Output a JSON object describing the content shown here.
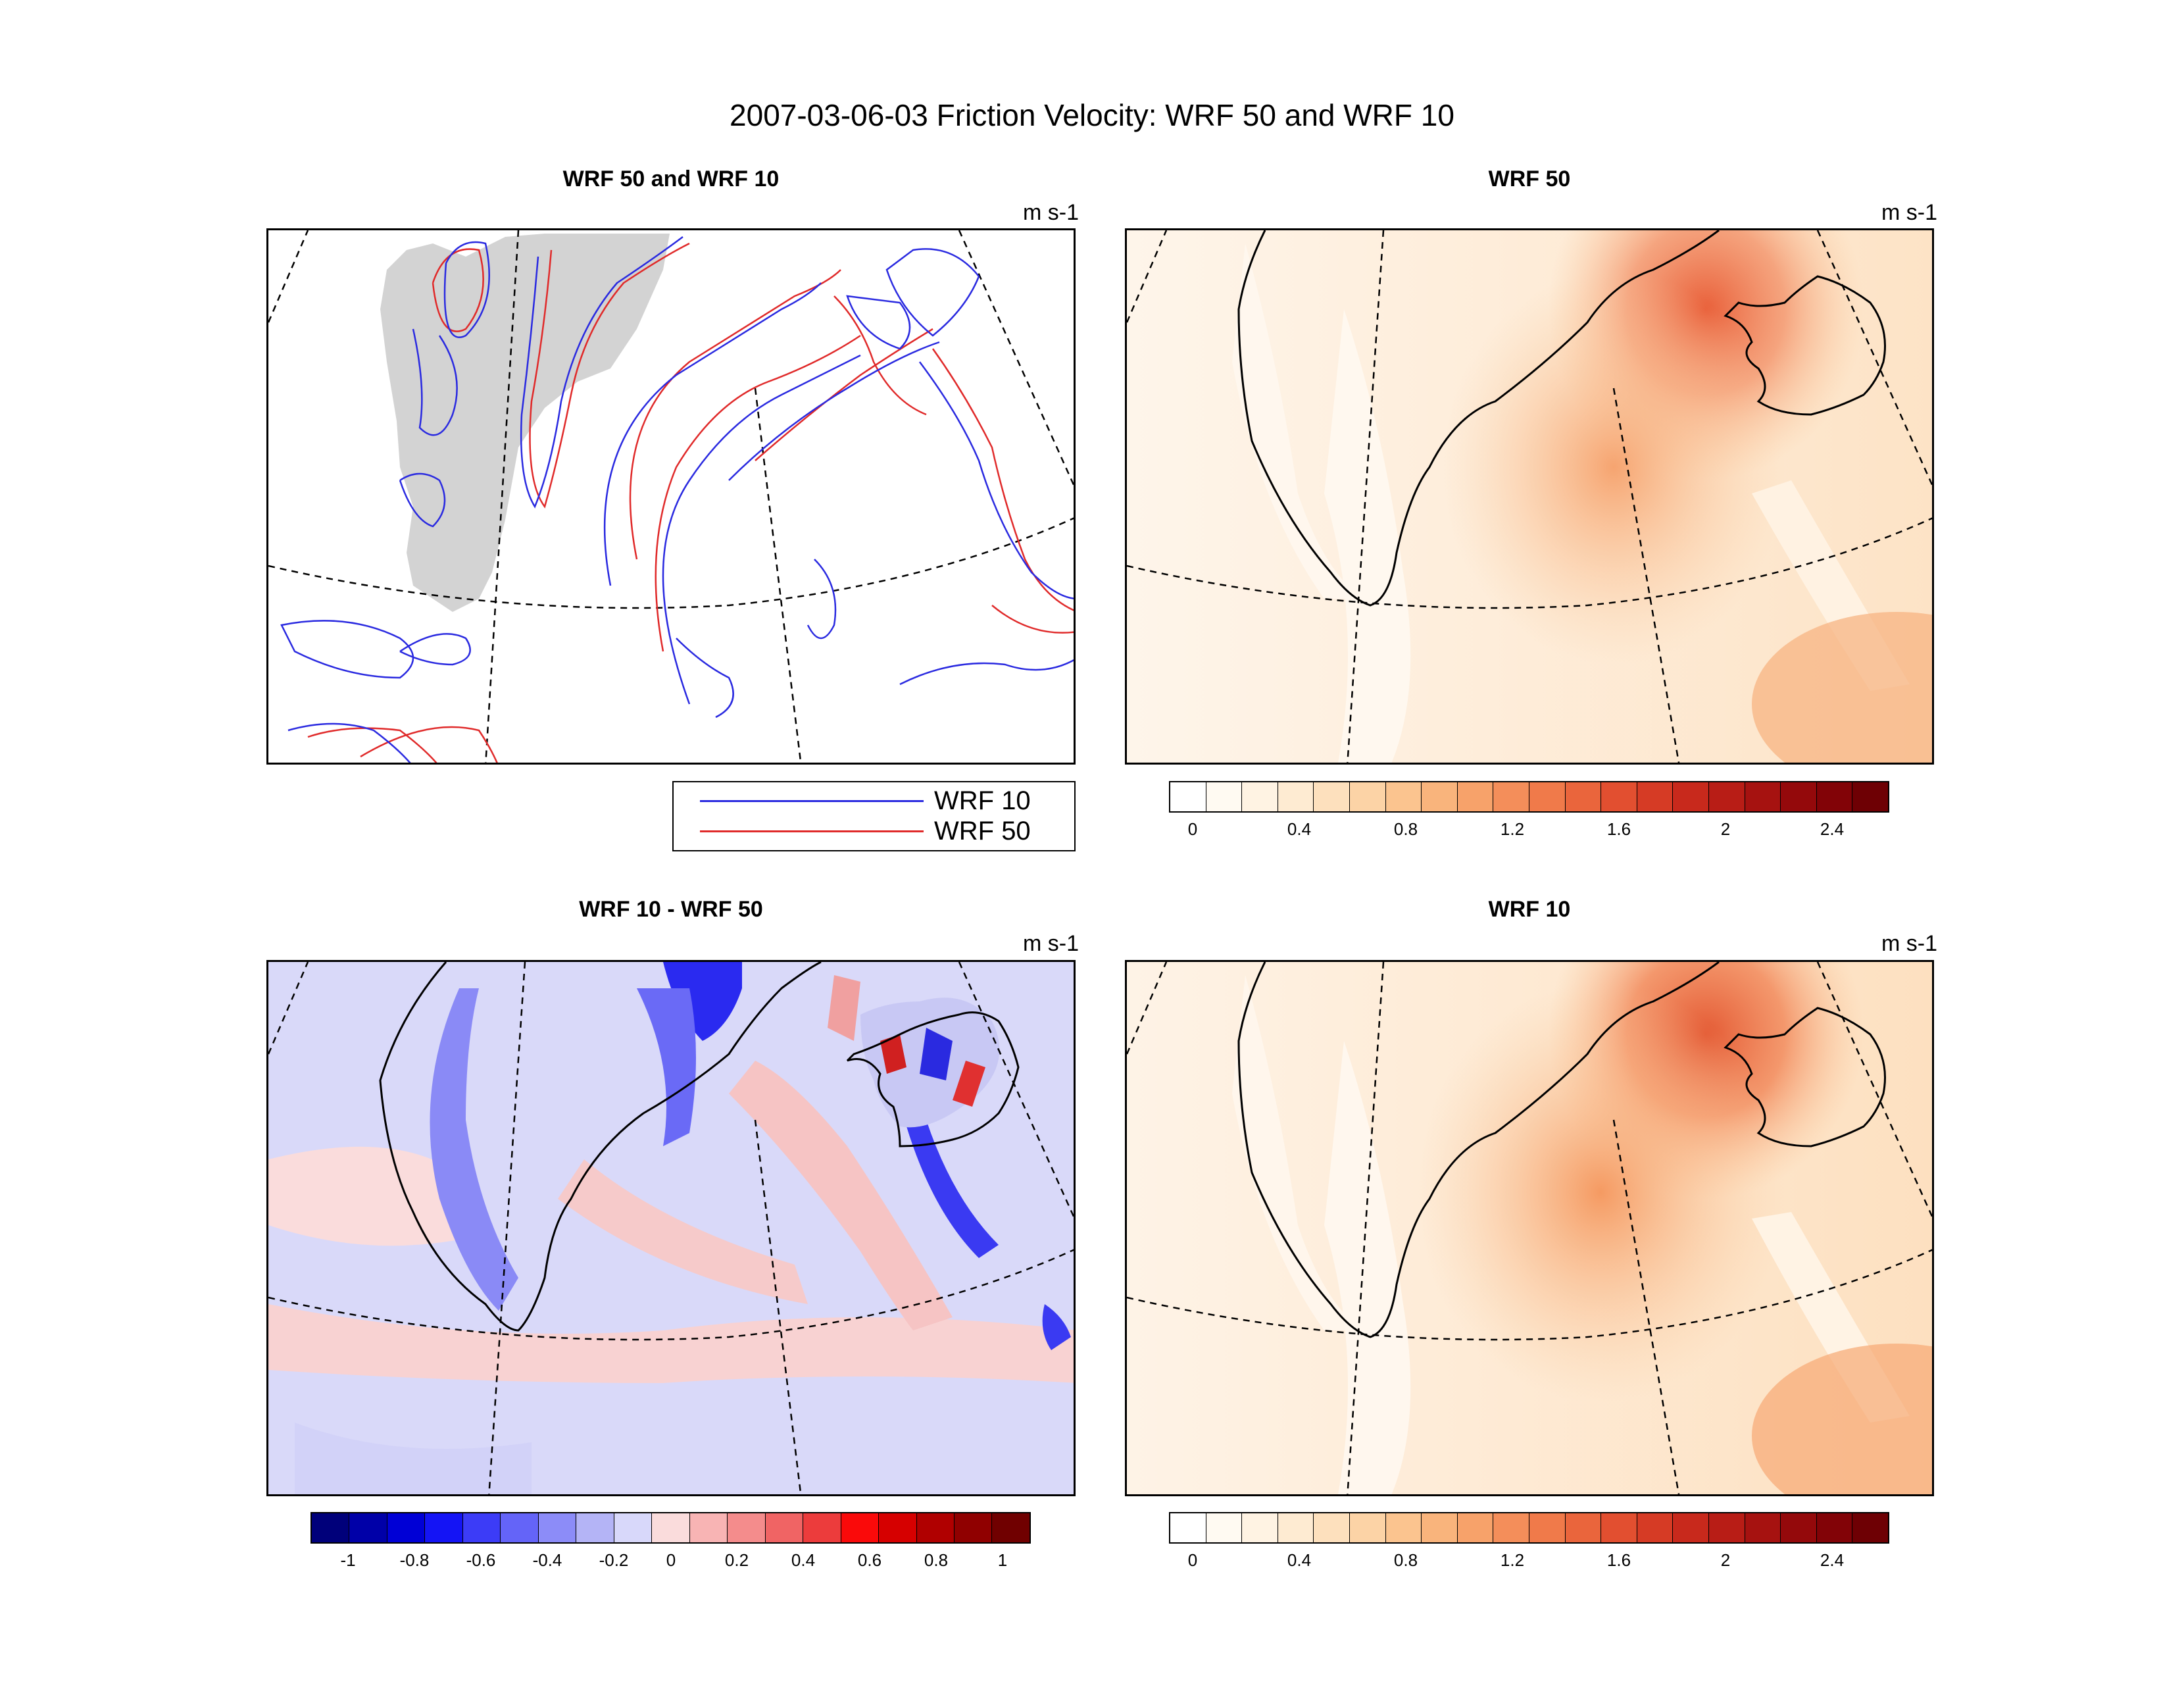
{
  "title": "2007-03-06-03 Friction Velocity: WRF 50 and WRF 10",
  "panels": {
    "contour": {
      "title": "WRF 50 and WRF 10",
      "units": "m s-1"
    },
    "wrf50": {
      "title": "WRF 50",
      "units": "m s-1"
    },
    "diff": {
      "title": "WRF 10 - WRF 50",
      "units": "m s-1"
    },
    "wrf10": {
      "title": "WRF 10",
      "units": "m s-1"
    }
  },
  "legend": {
    "items": [
      {
        "label": "WRF 10",
        "color": "#2a2ae0"
      },
      {
        "label": "WRF 50",
        "color": "#e02a2a"
      }
    ]
  },
  "colorbars": {
    "friction": {
      "colors": [
        "#ffffff",
        "#fffaf2",
        "#fff3e3",
        "#feebd2",
        "#fde0bd",
        "#fcd3a6",
        "#fbc48f",
        "#f9b47c",
        "#f7a26a",
        "#f48e5a",
        "#f07a4a",
        "#ea653c",
        "#e24f30",
        "#d63b25",
        "#c8291c",
        "#b81d16",
        "#a61210",
        "#94090b",
        "#820307",
        "#6e0004"
      ],
      "tick_labels": [
        "0",
        "0.4",
        "0.8",
        "1.2",
        "1.6",
        "2",
        "2.4"
      ]
    },
    "difference": {
      "colors": [
        "#00007a",
        "#0000a8",
        "#0000d6",
        "#1414f5",
        "#3c3cf7",
        "#6464f8",
        "#8c8cf8",
        "#b4b4f6",
        "#d8d8fa",
        "#fadcdc",
        "#f8b4b4",
        "#f48c8c",
        "#f06464",
        "#ec3c3c",
        "#fa0a0a",
        "#d60000",
        "#b00000",
        "#900000",
        "#700000"
      ],
      "tick_labels": [
        "-1",
        "-0.8",
        "-0.6",
        "-0.4",
        "-0.2",
        "0",
        "0.2",
        "0.4",
        "0.6",
        "0.8",
        "1"
      ]
    }
  }
}
